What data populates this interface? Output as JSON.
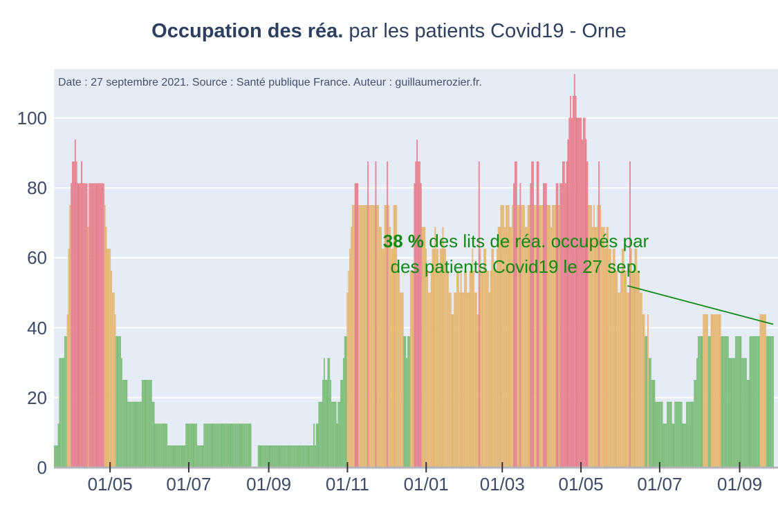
{
  "title": {
    "bold": "Occupation des réa.",
    "rest": " par les patients Covid19 - Orne"
  },
  "subtitle": "Date : 27 septembre 2021. Source : Santé publique France. Auteur : guillaumerozier.fr.",
  "annotation": {
    "percent": "38 %",
    "line1": " des lits de réa. occupés par",
    "line2": "des patients Covid19 le 27 sep."
  },
  "colors": {
    "plot_bg": "#e6ecf5",
    "grid": "#ffffff",
    "baseline": "#b4b4bc",
    "tick_mark": "#333333",
    "axis_text": "#3d4a66",
    "title_text": "#2d3e5f",
    "annotation_green": "#0e8a12",
    "green_fill": "#b5d8ae",
    "green_edge": "#66b366",
    "orange_fill": "#f3dcac",
    "orange_edge": "#dfa95e",
    "red_fill": "#f1b6be",
    "red_edge": "#e16b7b"
  },
  "chart_data": {
    "type": "bar",
    "title": "Occupation des réa. par les patients Covid19 - Orne",
    "ylabel": "",
    "xlabel": "",
    "start_date": "2020-03-19",
    "end_date": "2021-09-27",
    "ylim": [
      0,
      114
    ],
    "grid": true,
    "y_ticks": [
      0,
      20,
      40,
      60,
      80,
      100
    ],
    "x_ticks": [
      {
        "label": "01/05",
        "day": 43
      },
      {
        "label": "01/07",
        "day": 104
      },
      {
        "label": "01/09",
        "day": 166
      },
      {
        "label": "01/11",
        "day": 227
      },
      {
        "label": "01/01",
        "day": 288
      },
      {
        "label": "01/03",
        "day": 347
      },
      {
        "label": "01/05",
        "day": 408
      },
      {
        "label": "01/07",
        "day": 469
      },
      {
        "label": "01/09",
        "day": 531
      }
    ],
    "color_rule": {
      "green_below": 40,
      "orange_below": 80,
      "red_at_or_above": 80
    },
    "annotation_line": {
      "x1_day": 444,
      "y1_val": 52,
      "x2_day": 557,
      "y2_val": 41
    },
    "values": [
      6.25,
      6.25,
      6.25,
      12.5,
      31.25,
      31.25,
      31.25,
      31.25,
      37.5,
      37.5,
      43.75,
      62.5,
      75,
      81.25,
      87.5,
      87.5,
      93.75,
      87.5,
      81.25,
      81.25,
      81.25,
      87.5,
      81.25,
      81.25,
      81.25,
      81.25,
      68.75,
      81.25,
      81.25,
      81.25,
      81.25,
      81.25,
      81.25,
      81.25,
      81.25,
      81.25,
      81.25,
      81.25,
      81.25,
      75,
      68.75,
      62.5,
      62.5,
      62.5,
      56.25,
      50,
      50,
      43.75,
      37.5,
      37.5,
      37.5,
      37.5,
      31.25,
      25,
      25,
      25,
      25,
      18.75,
      18.75,
      18.75,
      18.75,
      18.75,
      18.75,
      18.75,
      18.75,
      18.75,
      18.75,
      18.75,
      25,
      25,
      25,
      25,
      25,
      25,
      25,
      25,
      18.75,
      18.75,
      12.5,
      12.5,
      12.5,
      12.5,
      12.5,
      12.5,
      12.5,
      12.5,
      12.5,
      12.5,
      6.25,
      6.25,
      6.25,
      6.25,
      6.25,
      6.25,
      6.25,
      6.25,
      6.25,
      6.25,
      6.25,
      6.25,
      6.25,
      6.25,
      12.5,
      12.5,
      12.5,
      12.5,
      12.5,
      12.5,
      12.5,
      12.5,
      12.5,
      6.25,
      6.25,
      6.25,
      6.25,
      6.25,
      12.5,
      12.5,
      12.5,
      12.5,
      12.5,
      12.5,
      12.5,
      12.5,
      12.5,
      12.5,
      12.5,
      12.5,
      12.5,
      12.5,
      12.5,
      12.5,
      12.5,
      12.5,
      12.5,
      12.5,
      12.5,
      12.5,
      12.5,
      12.5,
      12.5,
      12.5,
      12.5,
      12.5,
      12.5,
      12.5,
      12.5,
      12.5,
      12.5,
      12.5,
      12.5,
      12.5,
      12.5,
      0,
      0,
      0,
      0,
      0,
      6.25,
      6.25,
      6.25,
      6.25,
      6.25,
      6.25,
      6.25,
      6.25,
      6.25,
      6.25,
      6.25,
      6.25,
      6.25,
      6.25,
      6.25,
      6.25,
      6.25,
      6.25,
      6.25,
      6.25,
      6.25,
      6.25,
      6.25,
      6.25,
      6.25,
      6.25,
      6.25,
      6.25,
      6.25,
      6.25,
      6.25,
      6.25,
      6.25,
      6.25,
      6.25,
      6.25,
      6.25,
      6.25,
      6.25,
      6.25,
      6.25,
      6.25,
      6.25,
      12.5,
      6.25,
      12.5,
      12.5,
      18.75,
      18.75,
      18.75,
      25,
      31.25,
      25,
      25,
      31.25,
      31.25,
      25,
      18.75,
      18.75,
      18.75,
      18.75,
      12.5,
      18.75,
      18.75,
      25,
      25,
      31.25,
      37.5,
      37.5,
      50,
      56.25,
      62.5,
      68.75,
      75,
      75,
      81.25,
      81.25,
      81.25,
      75,
      75,
      75,
      75,
      75,
      75,
      75,
      87.5,
      75,
      75,
      75,
      75,
      75,
      87.5,
      75,
      75,
      68.75,
      68.75,
      62.5,
      62.5,
      75,
      75,
      87.5,
      75,
      68.75,
      62.5,
      62.5,
      75,
      75,
      75,
      56.25,
      56.25,
      50,
      50,
      50,
      37.5,
      37.5,
      31.25,
      37.5,
      37.5,
      56.25,
      56.25,
      56.25,
      81.25,
      87.5,
      93.75,
      87.5,
      87.5,
      81.25,
      68.75,
      68.75,
      68.75,
      62.5,
      56.25,
      50,
      50,
      56.25,
      62.5,
      62.5,
      68.75,
      62.5,
      62.5,
      56.25,
      62.5,
      62.5,
      68.75,
      62.5,
      62.5,
      56.25,
      56.25,
      50,
      50,
      43.75,
      43.75,
      50,
      50,
      56.25,
      56.25,
      50,
      56.25,
      50,
      50,
      56.25,
      56.25,
      50,
      50,
      56.25,
      56.25,
      62.5,
      56.25,
      50,
      50,
      43.75,
      87.5,
      62.5,
      56.25,
      56.25,
      62.5,
      62.5,
      56.25,
      56.25,
      50,
      56.25,
      62.5,
      62.5,
      56.25,
      56.25,
      62.5,
      68.75,
      68.75,
      75,
      75,
      75,
      68.75,
      75,
      75,
      75,
      68.75,
      68.75,
      75,
      81.25,
      87.5,
      87.5,
      75,
      75,
      81.25,
      75,
      75,
      75,
      68.75,
      68.75,
      75,
      75,
      81.25,
      87.5,
      87.5,
      75,
      75,
      87.5,
      87.5,
      75,
      75,
      75,
      81.25,
      81.25,
      81.25,
      75,
      75,
      75,
      68.75,
      75,
      75,
      75,
      81.25,
      81.25,
      75,
      81.25,
      81.25,
      87.5,
      87.5,
      81.25,
      87.5,
      93.75,
      100,
      106.25,
      100,
      106.25,
      112.5,
      106.25,
      100,
      100,
      100,
      100,
      93.75,
      100,
      100,
      93.75,
      87.5,
      75,
      75,
      75,
      68.75,
      75,
      68.75,
      68.75,
      75,
      87.5,
      75,
      68.75,
      68.75,
      68.75,
      62.5,
      68.75,
      68.75,
      62.5,
      62.5,
      56.25,
      62.5,
      62.5,
      56.25,
      56.25,
      50,
      50,
      56.25,
      62.5,
      62.5,
      56.25,
      56.25,
      50,
      50,
      87.5,
      62.5,
      56.25,
      56.25,
      62.5,
      62.5,
      56.25,
      56.25,
      50,
      50,
      43.75,
      43.75,
      37.5,
      37.5,
      43.75,
      31.25,
      31.25,
      25,
      25,
      25,
      18.75,
      18.75,
      18.75,
      18.75,
      18.75,
      18.75,
      12.5,
      12.5,
      12.5,
      18.75,
      18.75,
      18.75,
      18.75,
      12.5,
      12.5,
      18.75,
      18.75,
      18.75,
      18.75,
      18.75,
      18.75,
      12.5,
      12.5,
      12.5,
      18.75,
      18.75,
      18.75,
      18.75,
      18.75,
      18.75,
      25,
      25,
      31.25,
      37.5,
      37.5,
      37.5,
      37.5,
      43.75,
      43.75,
      43.75,
      43.75,
      37.5,
      37.5,
      43.75,
      43.75,
      43.75,
      43.75,
      43.75,
      43.75,
      43.75,
      43.75,
      37.5,
      37.5,
      37.5,
      37.5,
      37.5,
      37.5,
      31.25,
      31.25,
      31.25,
      31.25,
      31.25,
      37.5,
      37.5,
      37.5,
      37.5,
      37.5,
      31.25,
      31.25,
      31.25,
      31.25,
      25,
      25,
      37.5,
      37.5,
      37.5,
      37.5,
      37.5,
      37.5,
      37.5,
      37.5,
      43.75,
      43.75,
      43.75,
      43.75,
      43.75,
      37.5,
      37.5,
      37.5,
      37.5,
      37.5,
      37.5
    ]
  }
}
